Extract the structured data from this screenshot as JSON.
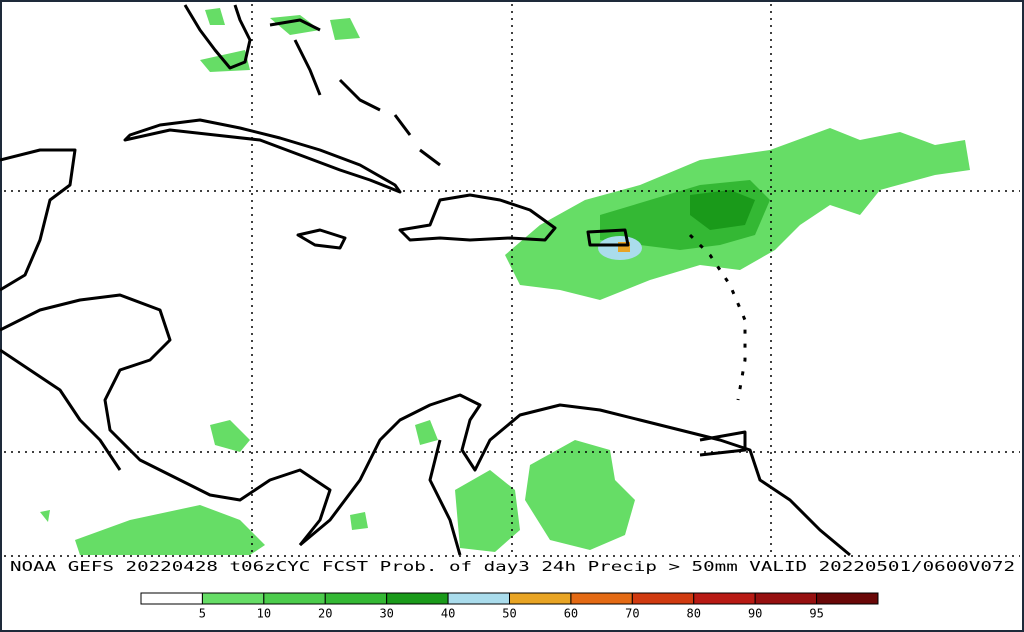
{
  "caption": "NOAA GEFS 20220428 t06zCYC FCST Prob. of day3 24h Precip > 50mm   VALID 20220501/0600V072",
  "legend": {
    "labels": [
      5,
      10,
      20,
      30,
      40,
      50,
      60,
      70,
      80,
      90,
      95
    ],
    "colors": [
      "#ffffff",
      "#66dd66",
      "#4ccc4c",
      "#34b834",
      "#1a9a1a",
      "#aadcec",
      "#e8a424",
      "#e46a14",
      "#d03a10",
      "#b81a14",
      "#961010",
      "#6a0808"
    ]
  }
}
